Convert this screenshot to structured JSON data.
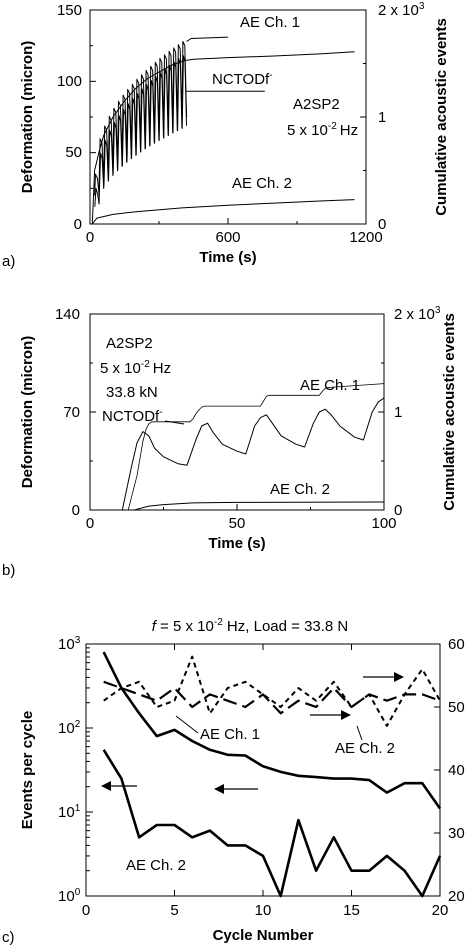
{
  "chart_data": [
    {
      "panel": "a)",
      "type": "line",
      "xlabel": "Time (s)",
      "ylabel": "Deformation (micron)",
      "y2label": "Cumulative acoustic events",
      "xlim": [
        0,
        1200
      ],
      "ylim": [
        0,
        150
      ],
      "y2lim": [
        0,
        2000
      ],
      "xticks": [
        "0",
        "600",
        "1200"
      ],
      "yticks": [
        "0",
        "50",
        "100",
        "150"
      ],
      "y2ticks": [
        "0",
        "1",
        "2 x 10"
      ],
      "y2tick_sup": "3",
      "annotations": [
        "AE Ch. 1",
        "NCTODf",
        "AE Ch. 2",
        "A2SP2",
        "5 x 10",
        "Hz"
      ],
      "ncto_sup": "-",
      "freq_sup": "-2",
      "series": [
        {
          "name": "AE Ch. 1",
          "axis": "right",
          "x": [
            10,
            20,
            40,
            60,
            100,
            150,
            200,
            250,
            300,
            350,
            400,
            420,
            450,
            600,
            800,
            1000,
            1150
          ],
          "y": [
            0,
            500,
            680,
            830,
            1000,
            1150,
            1270,
            1360,
            1420,
            1480,
            1520,
            1530,
            1540,
            1555,
            1570,
            1590,
            1610
          ]
        },
        {
          "name": "NCTODf",
          "axis": "left",
          "cycles": 20,
          "x_start": 20,
          "x_end": 420,
          "upper": [
            35,
            128
          ],
          "lower": [
            20,
            75
          ],
          "tail": [
            [
              420,
              93
            ],
            [
              760,
              93
            ]
          ]
        },
        {
          "name": "AE Ch. 2",
          "axis": "right",
          "x": [
            10,
            30,
            100,
            200,
            400,
            600,
            800,
            1000,
            1150
          ],
          "y": [
            0,
            55,
            90,
            115,
            150,
            175,
            195,
            215,
            228
          ]
        }
      ]
    },
    {
      "panel": "b)",
      "type": "line",
      "xlabel": "Time (s)",
      "ylabel": "Deformation (micron)",
      "y2label": "Cumulative acoustic events",
      "xlim": [
        0,
        100
      ],
      "ylim": [
        0,
        140
      ],
      "y2lim": [
        0,
        2000
      ],
      "xticks": [
        "0",
        "50",
        "100"
      ],
      "yticks": [
        "0",
        "70",
        "140"
      ],
      "y2ticks": [
        "0",
        "1",
        "2 x 10"
      ],
      "y2tick_sup": "3",
      "annotations": [
        "A2SP2",
        "5 x 10",
        "Hz",
        "33.8 kN",
        "AE Ch. 1",
        "NCTODf",
        "AE Ch. 2"
      ],
      "ncto_sup": "-",
      "freq_sup": "-2",
      "series": [
        {
          "name": "AE Ch. 1",
          "axis": "right",
          "x": [
            13,
            16,
            18,
            19,
            20,
            21,
            34,
            35,
            36,
            37,
            38,
            39,
            58,
            59,
            60,
            61,
            78,
            79,
            80,
            81,
            100
          ],
          "y": [
            0,
            350,
            700,
            820,
            880,
            900,
            900,
            930,
            980,
            1020,
            1050,
            1060,
            1060,
            1110,
            1160,
            1170,
            1170,
            1210,
            1240,
            1250,
            1290
          ]
        },
        {
          "name": "NCTODf",
          "axis": "left",
          "x": [
            11,
            14,
            16,
            18,
            20,
            22,
            25,
            30,
            33,
            36,
            38,
            40,
            42,
            45,
            50,
            53,
            56,
            58,
            60,
            62,
            65,
            70,
            73,
            76,
            78,
            80,
            82,
            85,
            90,
            93,
            96,
            98,
            100
          ],
          "y": [
            0,
            30,
            48,
            56,
            53,
            44,
            38,
            33,
            32,
            50,
            60,
            62,
            55,
            47,
            42,
            40,
            60,
            66,
            68,
            62,
            53,
            47,
            45,
            62,
            70,
            72,
            68,
            60,
            52,
            50,
            70,
            77,
            80
          ]
        },
        {
          "name": "AE Ch. 2",
          "axis": "right",
          "x": [
            15,
            20,
            25,
            35,
            50,
            70,
            100
          ],
          "y": [
            0,
            40,
            55,
            72,
            78,
            80,
            82
          ]
        }
      ]
    },
    {
      "panel": "c)",
      "type": "line",
      "title_var": "f",
      "title_mid": " = 5 x 10",
      "title_sup": "-2",
      "title_end": " Hz, Load = 33.8 N",
      "xlabel": "Cycle Number",
      "ylabel": "Events per cycle",
      "xlim": [
        0,
        20
      ],
      "ylim": [
        1,
        1000
      ],
      "yscale": "log",
      "y2lim": [
        20,
        60
      ],
      "xticks": [
        "0",
        "5",
        "10",
        "15",
        "20"
      ],
      "yticks_base": [
        "10",
        "10",
        "10",
        "10"
      ],
      "yticks_exp": [
        "0",
        "1",
        "2",
        "3"
      ],
      "y2ticks": [
        "20",
        "30",
        "40",
        "50",
        "60"
      ],
      "annotations": [
        "AE Ch. 1",
        "AE Ch. 2",
        "AE Ch. 2"
      ],
      "series": [
        {
          "name": "AE Ch. 1",
          "axis": "left",
          "style": "solid-thick",
          "x": [
            1,
            2,
            3,
            4,
            5,
            6,
            7,
            8,
            9,
            10,
            11,
            12,
            13,
            14,
            15,
            16,
            17,
            18,
            19,
            20
          ],
          "y": [
            800,
            300,
            150,
            80,
            95,
            70,
            55,
            48,
            47,
            35,
            30,
            27,
            26,
            25,
            25,
            24,
            17,
            22,
            22,
            11
          ]
        },
        {
          "name": "AE Ch. 2",
          "axis": "left",
          "style": "solid-thick",
          "x": [
            1,
            2,
            3,
            4,
            5,
            6,
            7,
            8,
            9,
            10,
            11,
            12,
            13,
            14,
            15,
            16,
            17,
            18,
            19,
            20
          ],
          "y": [
            55,
            25,
            5,
            7,
            7,
            5,
            6,
            4,
            4,
            3,
            1,
            8,
            2,
            5,
            2,
            2,
            3,
            2,
            1,
            3
          ]
        },
        {
          "name": "AE Ch. 1",
          "axis": "right",
          "style": "long-dash",
          "x": [
            1,
            2,
            3,
            4,
            5,
            6,
            7,
            8,
            9,
            10,
            11,
            12,
            13,
            14,
            15,
            16,
            17,
            18,
            19,
            20
          ],
          "y": [
            54,
            53,
            52,
            51,
            53,
            50,
            52,
            51,
            50,
            52,
            49,
            51,
            50,
            53,
            50,
            52,
            51,
            52,
            52,
            51
          ]
        },
        {
          "name": "AE Ch. 2",
          "axis": "right",
          "style": "short-dash",
          "x": [
            1,
            2,
            3,
            4,
            5,
            6,
            7,
            8,
            9,
            10,
            11,
            12,
            13,
            14,
            15,
            16,
            17,
            18,
            19,
            20
          ],
          "y": [
            51,
            53,
            54,
            50,
            51,
            58,
            49,
            53,
            54,
            52,
            50,
            53,
            51,
            54,
            50,
            52,
            47,
            52,
            56,
            51
          ]
        }
      ]
    }
  ]
}
